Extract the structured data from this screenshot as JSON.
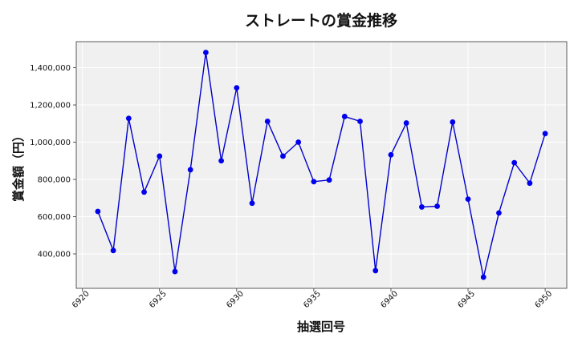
{
  "chart_data": {
    "type": "line",
    "title": "ストレートの賞金推移",
    "xlabel": "抽選回号",
    "ylabel": "賞金額（円）",
    "x": [
      6921,
      6922,
      6923,
      6924,
      6925,
      6926,
      6927,
      6928,
      6929,
      6930,
      6931,
      6932,
      6933,
      6934,
      6935,
      6936,
      6937,
      6938,
      6939,
      6940,
      6941,
      6942,
      6943,
      6944,
      6945,
      6946,
      6947,
      6948,
      6949,
      6950
    ],
    "series": [
      {
        "values": [
          628000,
          418000,
          1128000,
          732000,
          925000,
          305000,
          852000,
          1482000,
          900000,
          1292000,
          672000,
          1112000,
          925000,
          1000000,
          788000,
          797000,
          1138000,
          1112000,
          310000,
          932000,
          1103000,
          652000,
          656000,
          1108000,
          694000,
          275000,
          620000,
          890000,
          780000,
          1046000
        ]
      }
    ],
    "xticks": [
      "6920",
      "6925",
      "6930",
      "6935",
      "6940",
      "6945",
      "6950"
    ],
    "yticks": [
      "400,000",
      "600,000",
      "800,000",
      "1,000,000",
      "1,200,000",
      "1,400,000"
    ],
    "xlim": [
      6919.6,
      6951.4
    ],
    "ylim": [
      215000,
      1540000
    ],
    "grid": true,
    "colors": {
      "line": "#0000cc",
      "marker": "#0000ee",
      "plot_bg": "#f0f0f0",
      "grid": "#ffffff"
    }
  }
}
